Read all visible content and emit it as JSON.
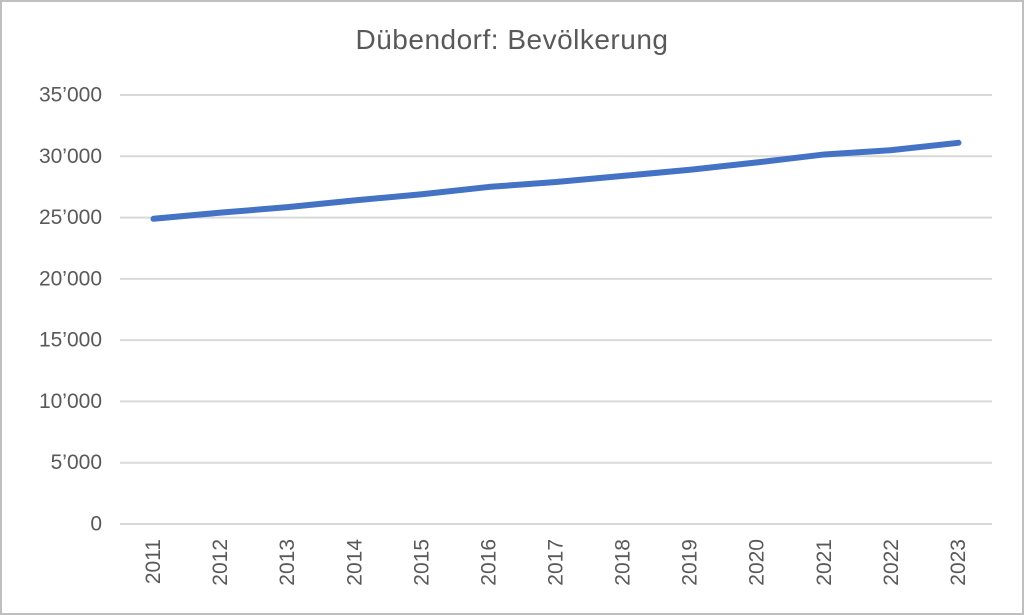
{
  "window": {
    "background_color": "#ffffff",
    "border_color": "#bfbfbf"
  },
  "chart_data": {
    "type": "line",
    "title": "Dübendorf: Bevölkerung",
    "xlabel": "",
    "ylabel": "",
    "categories": [
      "2011",
      "2012",
      "2013",
      "2014",
      "2015",
      "2016",
      "2017",
      "2018",
      "2019",
      "2020",
      "2021",
      "2022",
      "2023"
    ],
    "series": [
      {
        "name": "Bevölkerung",
        "color": "#4472c4",
        "values": [
          24900,
          25400,
          25850,
          26400,
          26900,
          27500,
          27900,
          28400,
          28900,
          29500,
          30150,
          30500,
          31100
        ]
      }
    ],
    "ylim": [
      0,
      35000
    ],
    "ytick_values": [
      0,
      5000,
      10000,
      15000,
      20000,
      25000,
      30000,
      35000
    ],
    "ytick_labels": [
      "0",
      "5’000",
      "10’000",
      "15’000",
      "20’000",
      "25’000",
      "30’000",
      "35’000"
    ],
    "x_tick_rotation_deg": 90,
    "grid": "horizontal",
    "legend": "none",
    "styles": {
      "title_color": "#595959",
      "axis_text_color": "#595959",
      "gridline_color": "#d9d9d9",
      "line_width": 6
    }
  }
}
